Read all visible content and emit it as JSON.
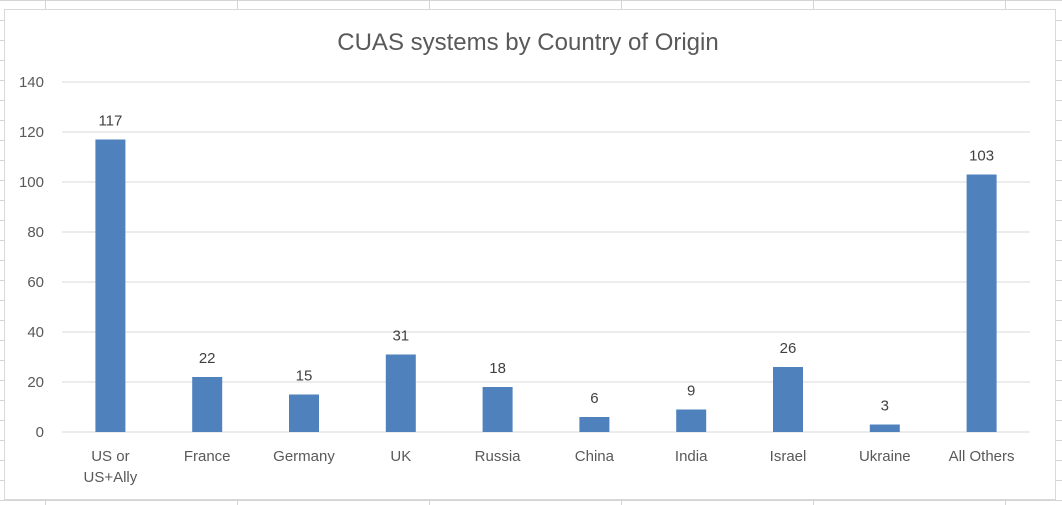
{
  "chart_data": {
    "type": "bar",
    "title": "CUAS systems by Country of Origin",
    "categories": [
      [
        "US or",
        "US+Ally"
      ],
      [
        "France"
      ],
      [
        "Germany"
      ],
      [
        "UK"
      ],
      [
        "Russia"
      ],
      [
        "China"
      ],
      [
        "India"
      ],
      [
        "Israel"
      ],
      [
        "Ukraine"
      ],
      [
        "All Others"
      ]
    ],
    "values": [
      117,
      22,
      15,
      31,
      18,
      6,
      9,
      26,
      3,
      103
    ],
    "ylim": [
      0,
      140
    ],
    "yticks": [
      0,
      20,
      40,
      60,
      80,
      100,
      120,
      140
    ],
    "xlabel": "",
    "ylabel": "",
    "grid": true,
    "legend": "none",
    "bar_color": "#4f81bd",
    "gridline_color": "#d9d9d9"
  }
}
